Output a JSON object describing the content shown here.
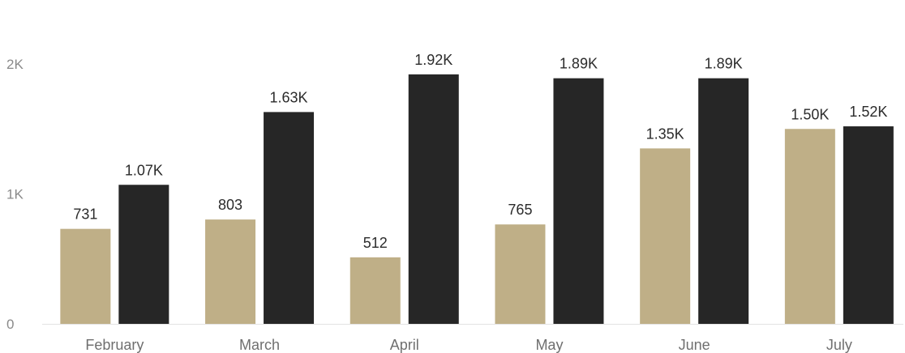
{
  "chart_data": {
    "type": "bar",
    "categories": [
      "February",
      "March",
      "April",
      "May",
      "June",
      "July"
    ],
    "series": [
      {
        "values": [
          731,
          803,
          512,
          765,
          1350,
          1500
        ],
        "labels": [
          "731",
          "803",
          "512",
          "765",
          "1.35K",
          "1.50K"
        ],
        "color": "#bfaf87"
      },
      {
        "values": [
          1070,
          1630,
          1920,
          1890,
          1890,
          1520
        ],
        "labels": [
          "1.07K",
          "1.63K",
          "1.92K",
          "1.89K",
          "1.89K",
          "1.52K"
        ],
        "color": "#262626"
      }
    ],
    "yticks": [
      {
        "value": 0,
        "label": "0"
      },
      {
        "value": 1000,
        "label": "1K"
      },
      {
        "value": 2000,
        "label": "2K"
      }
    ],
    "ylim": [
      0,
      2000
    ],
    "grid": false,
    "legend": "none"
  }
}
